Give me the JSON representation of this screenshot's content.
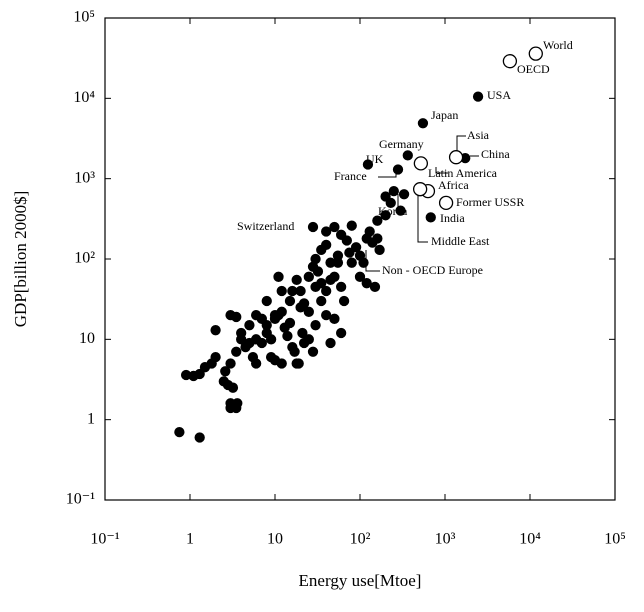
{
  "chart_data": {
    "type": "scatter",
    "x_label": "Energy use[Mtoe]",
    "y_label": "GDP[billion 2000$]",
    "log_x": true,
    "log_y": true,
    "xlim": [
      0.1,
      100000
    ],
    "ylim": [
      0.1,
      100000
    ],
    "xticks": [
      {
        "value": 0.1,
        "label": "10⁻¹"
      },
      1,
      10,
      {
        "value": 100,
        "label": "10²"
      },
      {
        "value": 1000,
        "label": "10³"
      },
      {
        "value": 10000,
        "label": "10⁴"
      },
      {
        "value": 100000,
        "label": "10⁵"
      }
    ],
    "yticks": [
      {
        "value": 0.1,
        "label": "10⁻¹"
      },
      1,
      10,
      {
        "value": 100,
        "label": "10²"
      },
      {
        "value": 1000,
        "label": "10³"
      },
      {
        "value": 10000,
        "label": "10⁴"
      },
      {
        "value": 100000,
        "label": "10⁵"
      }
    ],
    "series": [
      {
        "color": "#000000",
        "filled": true,
        "x": [
          2450,
          550,
          365,
          124,
          1730,
          680,
          330,
          28,
          280,
          0.75,
          1.3,
          3,
          3.5,
          3,
          3.6,
          0.9,
          1.1,
          1.3,
          1.5,
          1.8,
          2,
          2.5,
          2.8,
          3.2,
          2.6,
          3,
          3.5,
          2,
          3,
          3.5,
          4,
          4.5,
          5,
          5.5,
          6,
          7,
          8,
          9,
          9,
          10,
          10,
          11,
          12,
          13,
          14,
          15,
          16,
          17,
          18,
          19,
          20,
          21,
          22,
          25,
          28,
          30,
          30,
          35,
          40,
          45,
          50,
          60,
          18,
          20,
          22,
          25,
          28,
          30,
          32,
          35,
          40,
          45,
          50,
          55,
          60,
          65,
          70,
          75,
          80,
          90,
          100,
          110,
          120,
          130,
          140,
          150,
          160,
          170,
          200,
          230,
          6,
          7,
          8,
          10,
          15,
          12,
          11,
          40,
          50,
          60,
          80,
          100,
          120,
          160,
          200,
          250,
          300,
          40,
          25,
          45,
          55,
          35,
          4,
          5,
          6,
          8,
          16,
          12
        ],
        "y": [
          10500,
          4900,
          1950,
          1500,
          1800,
          330,
          640,
          250,
          1300,
          0.7,
          0.6,
          1.4,
          1.4,
          1.6,
          1.6,
          3.6,
          3.5,
          3.7,
          4.5,
          5,
          6,
          3,
          2.7,
          2.5,
          4,
          5,
          7,
          13,
          20,
          19,
          12,
          8,
          9,
          6,
          5,
          9,
          12,
          10,
          6,
          5.5,
          18,
          20,
          22,
          14,
          11,
          16,
          8,
          7,
          5,
          5,
          25,
          12,
          9,
          10,
          7,
          15,
          45,
          30,
          20,
          9,
          18,
          12,
          55,
          40,
          28,
          60,
          80,
          100,
          70,
          130,
          150,
          90,
          60,
          110,
          45,
          30,
          170,
          120,
          90,
          140,
          60,
          90,
          180,
          220,
          160,
          45,
          300,
          130,
          350,
          500,
          20,
          18,
          15,
          20,
          30,
          40,
          60,
          220,
          250,
          200,
          260,
          110,
          50,
          180,
          600,
          700,
          400,
          40,
          22,
          55,
          90,
          50,
          10,
          15,
          10,
          30,
          40,
          5
        ]
      },
      {
        "color": "#000000",
        "filled": false,
        "x": [
          11700,
          5800,
          1350,
          520,
          630,
          510,
          1030
        ],
        "y": [
          36000,
          29000,
          1850,
          1550,
          700,
          740,
          500
        ]
      }
    ],
    "annotations": [
      "World",
      "OECD",
      "USA",
      "Japan",
      "Germany",
      "UK",
      "Asia",
      "China",
      "Latin America",
      "France",
      "Africa",
      "Korea",
      "Former USSR",
      "India",
      "Middle East",
      "Switzerland",
      "Non - OECD Europe"
    ]
  }
}
